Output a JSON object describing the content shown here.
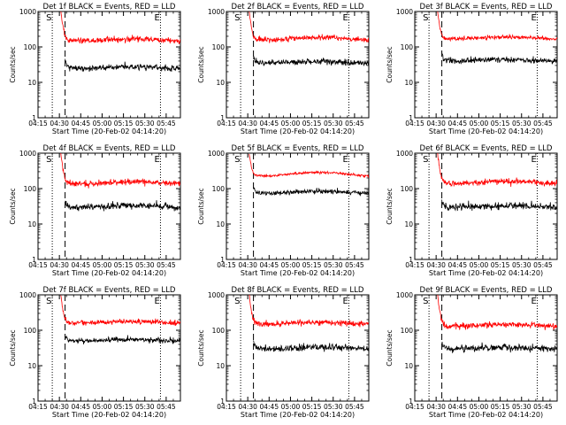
{
  "colors": {
    "events": "#000000",
    "lld": "#ff0000",
    "axes": "#000000",
    "background": "#ffffff"
  },
  "chart_data": [
    {
      "type": "line",
      "title": "Det 1f BLACK = Events, RED = LLD",
      "xlabel": "Start Time (20-Feb-02 04:14:20)",
      "ylabel": "Counts/sec",
      "yscale": "log",
      "ylim": [
        1,
        1000
      ],
      "xlim": [
        "04:15",
        "05:55"
      ],
      "x_ticks": [
        "04:15",
        "04:30",
        "04:45",
        "05:00",
        "05:15",
        "05:30",
        "05:45"
      ],
      "y_ticks": [
        "1",
        "10",
        "100",
        "1000"
      ],
      "markers": [
        {
          "label": "S",
          "time": "04:25",
          "style": "dotted"
        },
        {
          "label": "",
          "time": "04:34",
          "style": "dashed"
        },
        {
          "label": "E",
          "time": "05:41",
          "style": "dotted"
        }
      ],
      "series": [
        {
          "role": "LLD",
          "color": "#ff0000",
          "start": "04:31",
          "spike_from": 1000,
          "level": 150,
          "hump": 0.12,
          "noise": 0.12
        },
        {
          "role": "Events",
          "color": "#000000",
          "start": "04:34",
          "spike_from": 45,
          "level": 25,
          "hump": 0.1,
          "noise": 0.12
        }
      ]
    },
    {
      "type": "line",
      "title": "Det 2f BLACK = Events, RED = LLD",
      "xlabel": "Start Time (20-Feb-02 04:14:20)",
      "ylabel": "Counts/sec",
      "yscale": "log",
      "ylim": [
        1,
        1000
      ],
      "xlim": [
        "04:15",
        "05:55"
      ],
      "x_ticks": [
        "04:15",
        "04:30",
        "04:45",
        "05:00",
        "05:15",
        "05:30",
        "05:45"
      ],
      "y_ticks": [
        "1",
        "10",
        "100",
        "1000"
      ],
      "markers": [
        {
          "label": "S",
          "time": "04:25",
          "style": "dotted"
        },
        {
          "label": "",
          "time": "04:34",
          "style": "dashed"
        },
        {
          "label": "E",
          "time": "05:41",
          "style": "dotted"
        }
      ],
      "series": [
        {
          "role": "LLD",
          "color": "#ff0000",
          "start": "04:31",
          "spike_from": 1000,
          "level": 160,
          "hump": 0.15,
          "noise": 0.1
        },
        {
          "role": "Events",
          "color": "#000000",
          "start": "04:34",
          "spike_from": 55,
          "level": 35,
          "hump": 0.1,
          "noise": 0.12
        }
      ]
    },
    {
      "type": "line",
      "title": "Det 3f BLACK = Events, RED = LLD",
      "xlabel": "Start Time (20-Feb-02 04:14:20)",
      "ylabel": "Counts/sec",
      "yscale": "log",
      "ylim": [
        1,
        1000
      ],
      "xlim": [
        "04:15",
        "05:55"
      ],
      "x_ticks": [
        "04:15",
        "04:30",
        "04:45",
        "05:00",
        "05:15",
        "05:30",
        "05:45"
      ],
      "y_ticks": [
        "1",
        "10",
        "100",
        "1000"
      ],
      "markers": [
        {
          "label": "S",
          "time": "04:25",
          "style": "dotted"
        },
        {
          "label": "",
          "time": "04:34",
          "style": "dashed"
        },
        {
          "label": "E",
          "time": "05:41",
          "style": "dotted"
        }
      ],
      "series": [
        {
          "role": "LLD",
          "color": "#ff0000",
          "start": "04:31",
          "spike_from": 1000,
          "level": 170,
          "hump": 0.12,
          "noise": 0.08
        },
        {
          "role": "Events",
          "color": "#000000",
          "start": "04:34",
          "spike_from": 60,
          "level": 40,
          "hump": 0.1,
          "noise": 0.12
        }
      ]
    },
    {
      "type": "line",
      "title": "Det 4f BLACK = Events, RED = LLD",
      "xlabel": "Start Time (20-Feb-02 04:14:20)",
      "ylabel": "Counts/sec",
      "yscale": "log",
      "ylim": [
        1,
        1000
      ],
      "xlim": [
        "04:15",
        "05:55"
      ],
      "x_ticks": [
        "04:15",
        "04:30",
        "04:45",
        "05:00",
        "05:15",
        "05:30",
        "05:45"
      ],
      "y_ticks": [
        "1",
        "10",
        "100",
        "1000"
      ],
      "markers": [
        {
          "label": "S",
          "time": "04:25",
          "style": "dotted"
        },
        {
          "label": "",
          "time": "04:34",
          "style": "dashed"
        },
        {
          "label": "E",
          "time": "05:41",
          "style": "dotted"
        }
      ],
      "series": [
        {
          "role": "LLD",
          "color": "#ff0000",
          "start": "04:31",
          "spike_from": 1000,
          "level": 140,
          "hump": 0.1,
          "noise": 0.12
        },
        {
          "role": "Events",
          "color": "#000000",
          "start": "04:34",
          "spike_from": 45,
          "level": 30,
          "hump": 0.1,
          "noise": 0.14
        }
      ]
    },
    {
      "type": "line",
      "title": "Det 5f BLACK = Events, RED = LLD",
      "xlabel": "Start Time (20-Feb-02 04:14:20)",
      "ylabel": "Counts/sec",
      "yscale": "log",
      "ylim": [
        1,
        1000
      ],
      "xlim": [
        "04:15",
        "05:55"
      ],
      "x_ticks": [
        "04:15",
        "04:30",
        "04:45",
        "05:00",
        "05:15",
        "05:30",
        "05:45"
      ],
      "y_ticks": [
        "1",
        "10",
        "100",
        "1000"
      ],
      "markers": [
        {
          "label": "S",
          "time": "04:25",
          "style": "dotted"
        },
        {
          "label": "",
          "time": "04:34",
          "style": "dashed"
        },
        {
          "label": "E",
          "time": "05:41",
          "style": "dotted"
        }
      ],
      "series": [
        {
          "role": "LLD",
          "color": "#ff0000",
          "start": "04:31",
          "spike_from": 1000,
          "level": 230,
          "hump": 0.25,
          "noise": 0.05
        },
        {
          "role": "Events",
          "color": "#000000",
          "start": "04:34",
          "spike_from": 110,
          "level": 75,
          "hump": 0.12,
          "noise": 0.1
        }
      ]
    },
    {
      "type": "line",
      "title": "Det 6f BLACK = Events, RED = LLD",
      "xlabel": "Start Time (20-Feb-02 04:14:20)",
      "ylabel": "Counts/sec",
      "yscale": "log",
      "ylim": [
        1,
        1000
      ],
      "xlim": [
        "04:15",
        "05:55"
      ],
      "x_ticks": [
        "04:15",
        "04:30",
        "04:45",
        "05:00",
        "05:15",
        "05:30",
        "05:45"
      ],
      "y_ticks": [
        "1",
        "10",
        "100",
        "1000"
      ],
      "markers": [
        {
          "label": "S",
          "time": "04:25",
          "style": "dotted"
        },
        {
          "label": "",
          "time": "04:34",
          "style": "dashed"
        },
        {
          "label": "E",
          "time": "05:41",
          "style": "dotted"
        }
      ],
      "series": [
        {
          "role": "LLD",
          "color": "#ff0000",
          "start": "04:31",
          "spike_from": 1000,
          "level": 140,
          "hump": 0.12,
          "noise": 0.12
        },
        {
          "role": "Events",
          "color": "#000000",
          "start": "04:34",
          "spike_from": 45,
          "level": 30,
          "hump": 0.1,
          "noise": 0.14
        }
      ]
    },
    {
      "type": "line",
      "title": "Det 7f BLACK = Events, RED = LLD",
      "xlabel": "Start Time (20-Feb-02 04:14:20)",
      "ylabel": "Counts/sec",
      "yscale": "log",
      "ylim": [
        1,
        1000
      ],
      "xlim": [
        "04:15",
        "05:55"
      ],
      "x_ticks": [
        "04:15",
        "04:30",
        "04:45",
        "05:00",
        "05:15",
        "05:30",
        "05:45"
      ],
      "y_ticks": [
        "1",
        "10",
        "100",
        "1000"
      ],
      "markers": [
        {
          "label": "S",
          "time": "04:25",
          "style": "dotted"
        },
        {
          "label": "",
          "time": "04:34",
          "style": "dashed"
        },
        {
          "label": "E",
          "time": "05:41",
          "style": "dotted"
        }
      ],
      "series": [
        {
          "role": "LLD",
          "color": "#ff0000",
          "start": "04:31",
          "spike_from": 1000,
          "level": 160,
          "hump": 0.1,
          "noise": 0.1
        },
        {
          "role": "Events",
          "color": "#000000",
          "start": "04:34",
          "spike_from": 70,
          "level": 50,
          "hump": 0.1,
          "noise": 0.1
        }
      ]
    },
    {
      "type": "line",
      "title": "Det 8f BLACK = Events, RED = LLD",
      "xlabel": "Start Time (20-Feb-02 04:14:20)",
      "ylabel": "Counts/sec",
      "yscale": "log",
      "ylim": [
        1,
        1000
      ],
      "xlim": [
        "04:15",
        "05:55"
      ],
      "x_ticks": [
        "04:15",
        "04:30",
        "04:45",
        "05:00",
        "05:15",
        "05:30",
        "05:45"
      ],
      "y_ticks": [
        "1",
        "10",
        "100",
        "1000"
      ],
      "markers": [
        {
          "label": "S",
          "time": "04:25",
          "style": "dotted"
        },
        {
          "label": "",
          "time": "04:34",
          "style": "dashed"
        },
        {
          "label": "E",
          "time": "05:41",
          "style": "dotted"
        }
      ],
      "series": [
        {
          "role": "LLD",
          "color": "#ff0000",
          "start": "04:31",
          "spike_from": 1000,
          "level": 150,
          "hump": 0.12,
          "noise": 0.12
        },
        {
          "role": "Events",
          "color": "#000000",
          "start": "04:34",
          "spike_from": 45,
          "level": 30,
          "hump": 0.1,
          "noise": 0.14
        }
      ]
    },
    {
      "type": "line",
      "title": "Det 9f BLACK = Events, RED = LLD",
      "xlabel": "Start Time (20-Feb-02 04:14:20)",
      "ylabel": "Counts/sec",
      "yscale": "log",
      "ylim": [
        1,
        1000
      ],
      "xlim": [
        "04:15",
        "05:55"
      ],
      "x_ticks": [
        "04:15",
        "04:30",
        "04:45",
        "05:00",
        "05:15",
        "05:30",
        "05:45"
      ],
      "y_ticks": [
        "1",
        "10",
        "100",
        "1000"
      ],
      "markers": [
        {
          "label": "S",
          "time": "04:25",
          "style": "dotted"
        },
        {
          "label": "",
          "time": "04:34",
          "style": "dashed"
        },
        {
          "label": "E",
          "time": "05:41",
          "style": "dotted"
        }
      ],
      "series": [
        {
          "role": "LLD",
          "color": "#ff0000",
          "start": "04:31",
          "spike_from": 1000,
          "level": 130,
          "hump": 0.12,
          "noise": 0.12
        },
        {
          "role": "Events",
          "color": "#000000",
          "start": "04:34",
          "spike_from": 40,
          "level": 30,
          "hump": 0.1,
          "noise": 0.14
        }
      ]
    }
  ]
}
